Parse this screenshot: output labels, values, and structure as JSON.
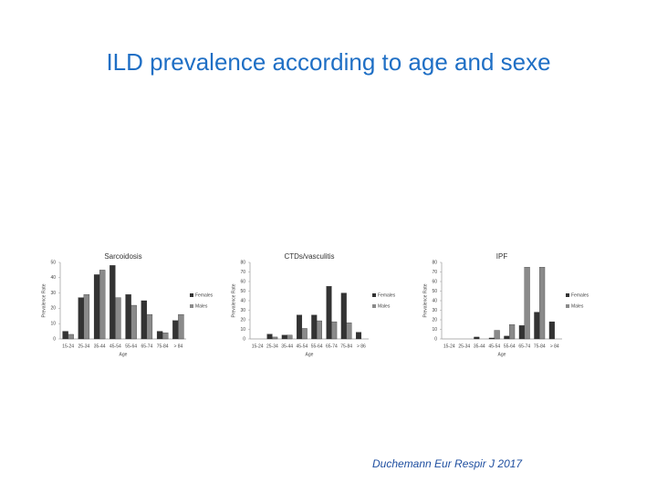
{
  "slide": {
    "title": "ILD prevalence according to age and sexe",
    "citation": "Duchemann Eur Respir J 2017"
  },
  "chart_data": [
    {
      "type": "bar",
      "title": "Sarcoidosis",
      "y_label": "Prevalence Rate",
      "x_label": "Age",
      "categories": [
        "15-24",
        "25-34",
        "35-44",
        "45-54",
        "55-64",
        "65-74",
        "75-84",
        "> 84"
      ],
      "series": [
        {
          "name": "Females",
          "color": "#333333",
          "values": [
            5,
            27,
            42,
            48,
            29,
            25,
            5,
            12
          ]
        },
        {
          "name": "Males",
          "color": "#8a8a8a",
          "values": [
            3,
            29,
            45,
            27,
            22,
            16,
            4,
            16
          ]
        }
      ],
      "ylim": [
        0,
        50
      ],
      "yticks": [
        0,
        10,
        20,
        30,
        40,
        50
      ]
    },
    {
      "type": "bar",
      "title": "CTDs/vasculitis",
      "y_label": "Prevalence Rate",
      "x_label": "Age",
      "categories": [
        "15-24",
        "25-34",
        "35-44",
        "45-54",
        "55-64",
        "65-74",
        "75-84",
        "> 86"
      ],
      "series": [
        {
          "name": "Females",
          "color": "#333333",
          "values": [
            0,
            5,
            4,
            25,
            25,
            55,
            48,
            7
          ]
        },
        {
          "name": "Males",
          "color": "#8a8a8a",
          "values": [
            0,
            2,
            4,
            11,
            19,
            18,
            17,
            0
          ]
        }
      ],
      "ylim": [
        0,
        80
      ],
      "yticks": [
        0,
        10,
        20,
        30,
        40,
        50,
        60,
        70,
        80
      ]
    },
    {
      "type": "bar",
      "title": "IPF",
      "y_label": "Prevalence Rate",
      "x_label": "Age",
      "categories": [
        "15-24",
        "25-34",
        "35-44",
        "45-54",
        "55-64",
        "65-74",
        "75-84",
        "> 84"
      ],
      "series": [
        {
          "name": "Females",
          "color": "#333333",
          "values": [
            0,
            0,
            2,
            1,
            3,
            14,
            28,
            18
          ]
        },
        {
          "name": "Males",
          "color": "#8a8a8a",
          "values": [
            0,
            0,
            0,
            9,
            15,
            75,
            75,
            0
          ]
        }
      ],
      "ylim": [
        0,
        80
      ],
      "yticks": [
        0,
        10,
        20,
        30,
        40,
        50,
        60,
        70,
        80
      ]
    }
  ]
}
